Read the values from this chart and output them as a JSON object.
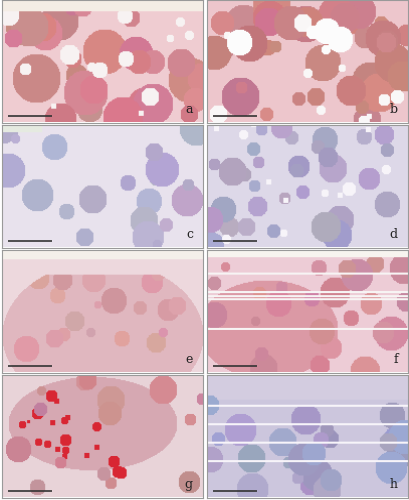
{
  "layout": {
    "rows": 4,
    "cols": 2,
    "figsize": [
      4.1,
      5.0
    ],
    "dpi": 100
  },
  "panels": [
    {
      "label": "a",
      "bg_color": [
        240,
        200,
        205
      ],
      "tissue_color": [
        210,
        130,
        140
      ],
      "style": "pink_heavy",
      "has_scalebar": true
    },
    {
      "label": "b",
      "bg_color": [
        235,
        195,
        200
      ],
      "tissue_color": [
        205,
        125,
        135
      ],
      "style": "pink_dense",
      "has_scalebar": true
    },
    {
      "label": "c",
      "bg_color": [
        230,
        225,
        235
      ],
      "tissue_color": [
        180,
        175,
        200
      ],
      "style": "light_purple",
      "has_scalebar": true
    },
    {
      "label": "d",
      "bg_color": [
        220,
        215,
        230
      ],
      "tissue_color": [
        170,
        165,
        195
      ],
      "style": "purple_medium",
      "has_scalebar": true
    },
    {
      "label": "e",
      "bg_color": [
        235,
        215,
        220
      ],
      "tissue_color": [
        205,
        150,
        160
      ],
      "style": "pink_light",
      "has_scalebar": true
    },
    {
      "label": "f",
      "bg_color": [
        235,
        195,
        205
      ],
      "tissue_color": [
        210,
        130,
        145
      ],
      "style": "pink_bold",
      "has_scalebar": true
    },
    {
      "label": "g",
      "bg_color": [
        230,
        210,
        215
      ],
      "tissue_color": [
        200,
        120,
        130
      ],
      "style": "pink_red_spots",
      "has_scalebar": true
    },
    {
      "label": "h",
      "bg_color": [
        215,
        210,
        230
      ],
      "tissue_color": [
        165,
        160,
        195
      ],
      "style": "blue_purple",
      "has_scalebar": true
    }
  ],
  "border_color": "#888888",
  "label_color": "#222222",
  "label_fontsize": 9,
  "scalebar_color": "#333333",
  "outer_border": "#aaaaaa"
}
